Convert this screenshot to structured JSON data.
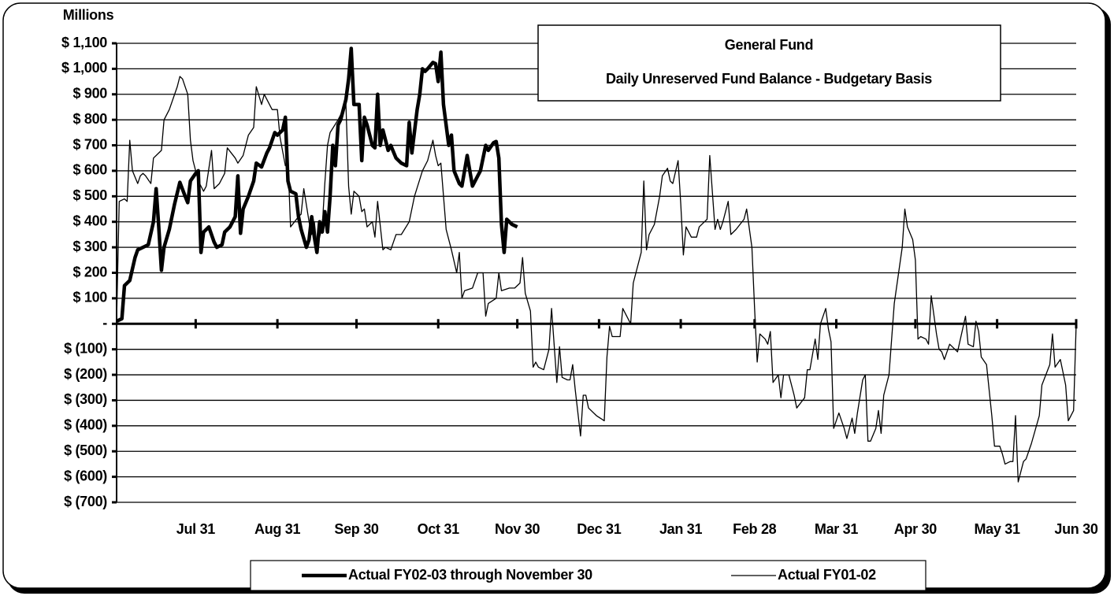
{
  "chart_data": {
    "type": "line",
    "title": "General Fund",
    "subtitle": "Daily Unreserved Fund Balance - Budgetary Basis",
    "ylabel": "Millions",
    "grid": true,
    "xlim": [
      0,
      364
    ],
    "ylim": [
      -700,
      1100
    ],
    "xticks": [
      {
        "value": 30,
        "label": "Jul 31"
      },
      {
        "value": 61,
        "label": "Aug 31"
      },
      {
        "value": 91,
        "label": "Sep 30"
      },
      {
        "value": 122,
        "label": "Oct 31"
      },
      {
        "value": 152,
        "label": "Nov 30"
      },
      {
        "value": 183,
        "label": "Dec 31"
      },
      {
        "value": 214,
        "label": "Jan 31"
      },
      {
        "value": 242,
        "label": "Feb 28"
      },
      {
        "value": 273,
        "label": "Mar 31"
      },
      {
        "value": 303,
        "label": "Apr 30"
      },
      {
        "value": 334,
        "label": "May 31"
      },
      {
        "value": 364,
        "label": "Jun 30"
      }
    ],
    "yticks": [
      {
        "value": 1100,
        "label": "$ 1,100"
      },
      {
        "value": 1000,
        "label": "$ 1,000"
      },
      {
        "value": 900,
        "label": "$ 900"
      },
      {
        "value": 800,
        "label": "$ 800"
      },
      {
        "value": 700,
        "label": "$ 700"
      },
      {
        "value": 600,
        "label": "$ 600"
      },
      {
        "value": 500,
        "label": "$ 500"
      },
      {
        "value": 400,
        "label": "$ 400"
      },
      {
        "value": 300,
        "label": "$ 300"
      },
      {
        "value": 200,
        "label": "$ 200"
      },
      {
        "value": 100,
        "label": "$ 100"
      },
      {
        "value": 0,
        "label": "-"
      },
      {
        "value": -100,
        "label": "$ (100)"
      },
      {
        "value": -200,
        "label": "$ (200)"
      },
      {
        "value": -300,
        "label": "$ (300)"
      },
      {
        "value": -400,
        "label": "$ (400)"
      },
      {
        "value": -500,
        "label": "$ (500)"
      },
      {
        "value": -600,
        "label": "$ (600)"
      },
      {
        "value": -700,
        "label": "$ (700)"
      }
    ],
    "series": [
      {
        "name": "Actual FY02-03 through November 30",
        "color": "#000000",
        "x": [
          0,
          2,
          3,
          5,
          7,
          8,
          10,
          12,
          14,
          15,
          16,
          17,
          18,
          20,
          22,
          24,
          26,
          27,
          28,
          30,
          31,
          32,
          33,
          35,
          37,
          38,
          40,
          41,
          43,
          45,
          46,
          47,
          48,
          50,
          52,
          53,
          55,
          57,
          58,
          60,
          61,
          63,
          64,
          65,
          66,
          68,
          69,
          70,
          72,
          73,
          74,
          75,
          76,
          77,
          78,
          79,
          80,
          81,
          82,
          83,
          84,
          85,
          87,
          88,
          89,
          90,
          92,
          93,
          94,
          95,
          97,
          98,
          99,
          100,
          101,
          103,
          104,
          106,
          108,
          110,
          111,
          112,
          114,
          115,
          116,
          117,
          118,
          120,
          121,
          122,
          123,
          124,
          126,
          127,
          128,
          130,
          131,
          133,
          135,
          137,
          138,
          140,
          141,
          143,
          144,
          145,
          146,
          147,
          148,
          150,
          152
        ],
        "values": [
          10,
          20,
          150,
          170,
          260,
          290,
          300,
          310,
          400,
          530,
          380,
          210,
          300,
          370,
          470,
          555,
          500,
          475,
          560,
          590,
          600,
          280,
          360,
          380,
          320,
          300,
          310,
          360,
          380,
          420,
          580,
          355,
          450,
          500,
          560,
          630,
          615,
          670,
          690,
          750,
          740,
          760,
          810,
          560,
          520,
          510,
          420,
          370,
          300,
          330,
          420,
          340,
          280,
          400,
          360,
          440,
          360,
          500,
          700,
          620,
          780,
          800,
          880,
          960,
          1080,
          860,
          860,
          640,
          810,
          780,
          700,
          690,
          900,
          700,
          760,
          680,
          700,
          650,
          630,
          620,
          790,
          670,
          840,
          900,
          1000,
          990,
          1000,
          1025,
          1020,
          950,
          1065,
          860,
          700,
          740,
          600,
          550,
          540,
          660,
          540,
          580,
          600,
          700,
          680,
          710,
          715,
          650,
          390,
          280,
          410,
          390,
          380
        ]
      },
      {
        "name": "Actual FY01-02",
        "color": "#000000",
        "x": [
          0,
          1,
          3,
          4,
          5,
          6,
          8,
          9,
          10,
          11,
          13,
          14,
          17,
          18,
          20,
          23,
          24,
          25,
          27,
          28,
          29,
          31,
          33,
          34,
          36,
          37,
          39,
          41,
          42,
          45,
          46,
          48,
          50,
          52,
          53,
          55,
          56,
          59,
          61,
          62,
          64,
          65,
          66,
          69,
          70,
          71,
          73,
          74,
          75,
          76,
          78,
          79,
          80,
          81,
          84,
          87,
          88,
          89,
          90,
          92,
          93,
          94,
          95,
          97,
          98,
          99,
          101,
          102,
          104,
          106,
          108,
          111,
          113,
          116,
          118,
          120,
          121,
          122,
          123,
          125,
          127,
          129,
          130,
          131,
          132,
          135,
          137,
          139,
          140,
          141,
          144,
          145,
          146,
          149,
          151,
          153,
          154,
          155,
          157,
          158,
          159,
          160,
          162,
          164,
          165,
          167,
          168,
          169,
          171,
          172,
          173,
          174,
          176,
          177,
          178,
          179,
          182,
          185,
          186,
          187,
          188,
          191,
          192,
          195,
          196,
          199,
          200,
          201,
          202,
          204,
          206,
          207,
          209,
          210,
          211,
          213,
          214,
          215,
          216,
          218,
          220,
          221,
          223,
          224,
          225,
          227,
          228,
          229,
          230,
          232,
          233,
          235,
          238,
          239,
          241,
          242,
          243,
          244,
          246,
          247,
          248,
          249,
          251,
          252,
          253,
          255,
          257,
          258,
          261,
          262,
          263,
          265,
          266,
          267,
          269,
          270,
          271,
          272,
          274,
          276,
          277,
          279,
          280,
          281,
          283,
          284,
          285,
          286,
          288,
          289,
          290,
          291,
          293,
          295,
          298,
          299,
          300,
          302,
          303,
          304,
          305,
          307,
          308,
          309,
          311,
          312,
          313,
          314,
          316,
          318,
          319,
          322,
          323,
          325,
          326,
          327,
          328,
          330,
          332,
          333,
          335,
          336,
          337,
          339,
          340,
          341,
          342,
          344,
          345,
          347,
          350,
          351,
          354,
          355,
          356,
          358,
          360,
          361,
          363,
          364
        ],
        "values": [
          10,
          480,
          490,
          480,
          720,
          600,
          550,
          580,
          590,
          580,
          550,
          650,
          680,
          800,
          840,
          930,
          970,
          960,
          900,
          720,
          640,
          560,
          520,
          540,
          680,
          530,
          550,
          590,
          690,
          650,
          630,
          660,
          740,
          770,
          930,
          860,
          900,
          840,
          840,
          730,
          620,
          640,
          380,
          420,
          430,
          530,
          400,
          350,
          400,
          300,
          380,
          550,
          700,
          750,
          800,
          860,
          540,
          430,
          520,
          500,
          440,
          450,
          380,
          400,
          340,
          480,
          290,
          300,
          290,
          350,
          350,
          400,
          500,
          600,
          640,
          720,
          660,
          620,
          630,
          370,
          290,
          200,
          280,
          100,
          130,
          140,
          200,
          200,
          30,
          80,
          100,
          200,
          130,
          140,
          140,
          160,
          260,
          120,
          50,
          -170,
          -150,
          -170,
          -180,
          -100,
          60,
          -230,
          -90,
          -210,
          -220,
          -220,
          -160,
          -260,
          -440,
          -280,
          -280,
          -330,
          -360,
          -380,
          -130,
          -10,
          -50,
          -50,
          60,
          0,
          160,
          280,
          560,
          290,
          350,
          390,
          500,
          580,
          610,
          560,
          550,
          640,
          470,
          270,
          380,
          340,
          340,
          380,
          400,
          410,
          660,
          370,
          410,
          370,
          400,
          480,
          350,
          370,
          410,
          450,
          300,
          60,
          -150,
          -40,
          -60,
          -80,
          -30,
          -230,
          -200,
          -290,
          -200,
          -200,
          -280,
          -330,
          -290,
          -180,
          -180,
          -60,
          -140,
          0,
          60,
          -20,
          -70,
          -410,
          -350,
          -410,
          -450,
          -370,
          -430,
          -350,
          -220,
          -200,
          -460,
          -460,
          -410,
          -340,
          -430,
          -280,
          -200,
          80,
          300,
          450,
          380,
          330,
          250,
          -60,
          -50,
          -60,
          -80,
          110,
          -40,
          -100,
          -110,
          -140,
          -80,
          -100,
          -110,
          30,
          -80,
          -90,
          10,
          -30,
          -130,
          -160,
          -360,
          -480,
          -480,
          -510,
          -550,
          -540,
          -540,
          -360,
          -620,
          -540,
          -530,
          -470,
          -360,
          -240,
          -160,
          -40,
          -170,
          -140,
          -240,
          -380,
          -340,
          0
        ]
      }
    ]
  }
}
